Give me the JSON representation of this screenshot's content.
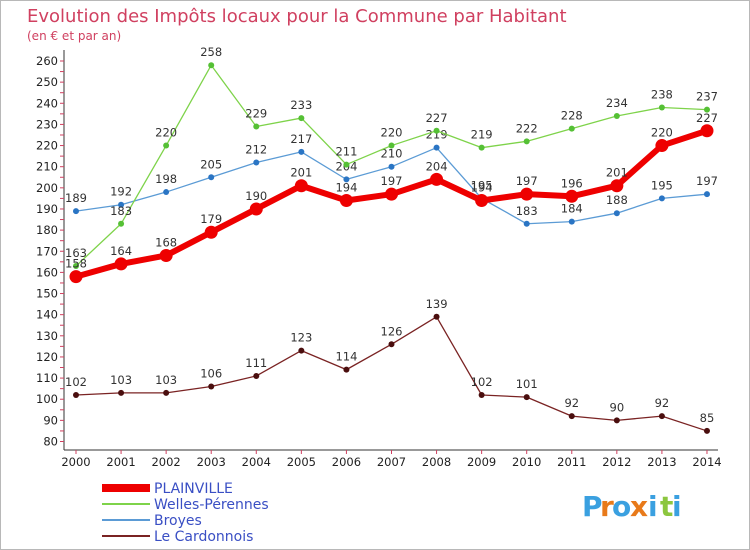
{
  "chart_data": {
    "type": "line",
    "title": "Evolution des Impôts locaux pour la Commune par Habitant",
    "subtitle": "(en € et par an)",
    "xlabel": "",
    "ylabel": "",
    "ylim": [
      80,
      260
    ],
    "yticks": [
      80,
      90,
      100,
      110,
      120,
      130,
      140,
      150,
      160,
      170,
      180,
      190,
      200,
      210,
      220,
      230,
      240,
      250,
      260
    ],
    "categories": [
      "2000",
      "2001",
      "2002",
      "2003",
      "2004",
      "2005",
      "2006",
      "2007",
      "2008",
      "2009",
      "2010",
      "2011",
      "2012",
      "2013",
      "2014"
    ],
    "series": [
      {
        "name": "Le Cardonnois",
        "color": "#7a2323",
        "values": [
          102,
          103,
          103,
          106,
          111,
          123,
          114,
          126,
          139,
          102,
          101,
          92,
          90,
          92,
          85
        ]
      },
      {
        "name": "Broyes",
        "color": "#5b9bd5",
        "values": [
          189,
          192,
          198,
          205,
          212,
          217,
          204,
          210,
          219,
          195,
          183,
          184,
          188,
          195,
          197
        ]
      },
      {
        "name": "Welles-Pérennes",
        "color": "#7ed34a",
        "values": [
          163,
          183,
          220,
          258,
          229,
          233,
          211,
          220,
          227,
          219,
          222,
          228,
          234,
          238,
          237
        ]
      },
      {
        "name": "PLAINVILLE",
        "color": "#ee0000",
        "values": [
          158,
          164,
          168,
          179,
          190,
          201,
          194,
          197,
          204,
          194,
          197,
          196,
          201,
          220,
          227
        ]
      }
    ],
    "legend": [
      "PLAINVILLE",
      "Broyes",
      "Welles-Pérennes",
      "Le Cardonnois"
    ],
    "legend_position": "bottom-left",
    "grid": false
  },
  "branding": {
    "logo_letters": [
      "P",
      "r",
      "o",
      "x",
      "i",
      "t",
      "i"
    ],
    "logo_colors": [
      "#3aa0e0",
      "#e87a1a",
      "#3aa0e0",
      "#e87a1a",
      "#3aa0e0",
      "#8cc63f",
      "#3aa0e0"
    ]
  }
}
